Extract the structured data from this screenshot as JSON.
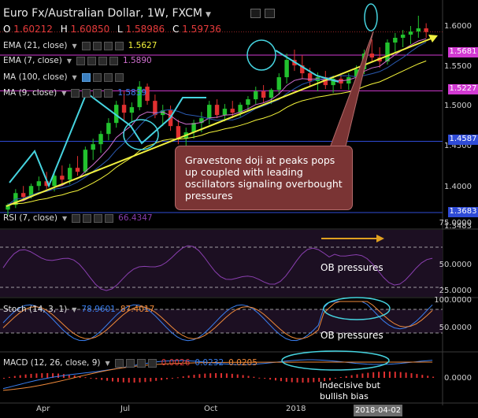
{
  "header": {
    "title": "Euro Fx/Australian Dollar, 1W, FXCM",
    "ohlc": [
      {
        "key": "O",
        "value": "1.60212"
      },
      {
        "key": "H",
        "value": "1.60850"
      },
      {
        "key": "L",
        "value": "1.58986"
      },
      {
        "key": "C",
        "value": "1.59736"
      }
    ]
  },
  "indicators": {
    "ema21": {
      "label": "EMA (21, close)",
      "value": "1.5627",
      "color": "#f5f53a"
    },
    "ema7": {
      "label": "EMA (7, close)",
      "value": "1.5890",
      "color": "#d070d0"
    },
    "ma100": {
      "label": "MA (100, close)",
      "color": "#3a7ff0"
    },
    "ma9": {
      "label": "MA (9, close)",
      "value": "1.5839",
      "color": "#2a5ab0"
    }
  },
  "price_axis": {
    "ticks": [
      "1.6000",
      "1.5500",
      "1.5000",
      "1.4500",
      "1.4000",
      "1.3483"
    ],
    "tags": [
      {
        "value": "1.5681",
        "bg": "#d23ad2"
      },
      {
        "value": "1.5227",
        "bg": "#d23ad2"
      },
      {
        "value": "1.4587",
        "bg": "#2f4bd6"
      },
      {
        "value": "1.3683",
        "bg": "#2f4bd6"
      }
    ]
  },
  "annotations": {
    "callout": "Gravestone doji at peaks pops up coupled with leading oscillators signaling overbought pressures",
    "rsi_note": "OB pressures",
    "stoch_note": "OB pressures",
    "macd_note_1": "Indecisive but",
    "macd_note_2": "bullish bias"
  },
  "rsi_panel": {
    "label": "RSI (7, close)",
    "value": "66.4347",
    "ticks": [
      "75.0000",
      "50.0000",
      "25.0000"
    ]
  },
  "stoch_panel": {
    "label": "Stoch (14, 3, 1)",
    "k_value": "78.9601",
    "d_value": "87.4017",
    "ticks": [
      "100.0000",
      "50.0000"
    ]
  },
  "macd_panel": {
    "label": "MACD (12, 26, close, 9)",
    "hist_value": "0.0026",
    "macd_value": "0.0232",
    "signal_value": "0.0205",
    "ticks": [
      "0.0000"
    ]
  },
  "x_axis": {
    "ticks": [
      "Apr",
      "Jul",
      "Oct",
      "2018"
    ],
    "current_date": "2018-04-02"
  },
  "chart_data": {
    "type": "candlestick",
    "title": "Euro Fx/Australian Dollar, 1W, FXCM",
    "xlabel": "",
    "ylabel": "",
    "ylim": [
      1.3483,
      1.618
    ],
    "series": [
      {
        "name": "EMA (21, close)",
        "last": 1.5627
      },
      {
        "name": "EMA (7, close)",
        "last": 1.589
      },
      {
        "name": "MA (9, close)",
        "last": 1.5839
      }
    ],
    "candles": [
      [
        1.372,
        1.38,
        1.364,
        1.378
      ],
      [
        1.378,
        1.398,
        1.374,
        1.393
      ],
      [
        1.393,
        1.402,
        1.383,
        1.388
      ],
      [
        1.388,
        1.405,
        1.386,
        1.402
      ],
      [
        1.402,
        1.414,
        1.396,
        1.408
      ],
      [
        1.408,
        1.42,
        1.398,
        1.402
      ],
      [
        1.402,
        1.418,
        1.395,
        1.415
      ],
      [
        1.415,
        1.428,
        1.405,
        1.41
      ],
      [
        1.41,
        1.43,
        1.404,
        1.425
      ],
      [
        1.425,
        1.44,
        1.415,
        1.42
      ],
      [
        1.42,
        1.452,
        1.418,
        1.448
      ],
      [
        1.448,
        1.462,
        1.435,
        1.455
      ],
      [
        1.455,
        1.472,
        1.444,
        1.468
      ],
      [
        1.468,
        1.488,
        1.46,
        1.482
      ],
      [
        1.482,
        1.51,
        1.476,
        1.505
      ],
      [
        1.505,
        1.522,
        1.486,
        1.495
      ],
      [
        1.495,
        1.508,
        1.482,
        1.502
      ],
      [
        1.502,
        1.535,
        1.498,
        1.528
      ],
      [
        1.528,
        1.532,
        1.505,
        1.51
      ],
      [
        1.51,
        1.518,
        1.488,
        1.492
      ],
      [
        1.492,
        1.505,
        1.478,
        1.498
      ],
      [
        1.498,
        1.504,
        1.472,
        1.478
      ],
      [
        1.478,
        1.486,
        1.455,
        1.462
      ],
      [
        1.462,
        1.476,
        1.452,
        1.47
      ],
      [
        1.47,
        1.486,
        1.462,
        1.482
      ],
      [
        1.482,
        1.496,
        1.47,
        1.488
      ],
      [
        1.488,
        1.51,
        1.48,
        1.505
      ],
      [
        1.505,
        1.512,
        1.488,
        1.492
      ],
      [
        1.492,
        1.506,
        1.484,
        1.5
      ],
      [
        1.5,
        1.51,
        1.488,
        1.495
      ],
      [
        1.495,
        1.508,
        1.49,
        1.505
      ],
      [
        1.505,
        1.516,
        1.498,
        1.512
      ],
      [
        1.512,
        1.528,
        1.506,
        1.522
      ],
      [
        1.522,
        1.53,
        1.508,
        1.514
      ],
      [
        1.514,
        1.526,
        1.506,
        1.524
      ],
      [
        1.524,
        1.545,
        1.518,
        1.54
      ],
      [
        1.54,
        1.57,
        1.532,
        1.562
      ],
      [
        1.562,
        1.575,
        1.548,
        1.555
      ],
      [
        1.555,
        1.568,
        1.538,
        1.545
      ],
      [
        1.545,
        1.552,
        1.528,
        1.535
      ],
      [
        1.535,
        1.546,
        1.522,
        1.54
      ],
      [
        1.54,
        1.548,
        1.525,
        1.53
      ],
      [
        1.53,
        1.542,
        1.52,
        1.538
      ],
      [
        1.538,
        1.545,
        1.525,
        1.532
      ],
      [
        1.532,
        1.545,
        1.524,
        1.54
      ],
      [
        1.54,
        1.555,
        1.532,
        1.55
      ],
      [
        1.55,
        1.575,
        1.544,
        1.57
      ],
      [
        1.57,
        1.588,
        1.56,
        1.565
      ],
      [
        1.565,
        1.578,
        1.552,
        1.56
      ],
      [
        1.56,
        1.588,
        1.556,
        1.584
      ],
      [
        1.584,
        1.596,
        1.572,
        1.59
      ],
      [
        1.59,
        1.6,
        1.578,
        1.594
      ],
      [
        1.594,
        1.605,
        1.582,
        1.598
      ],
      [
        1.598,
        1.618,
        1.59,
        1.602
      ],
      [
        1.602,
        1.6085,
        1.58986,
        1.59736
      ]
    ]
  }
}
